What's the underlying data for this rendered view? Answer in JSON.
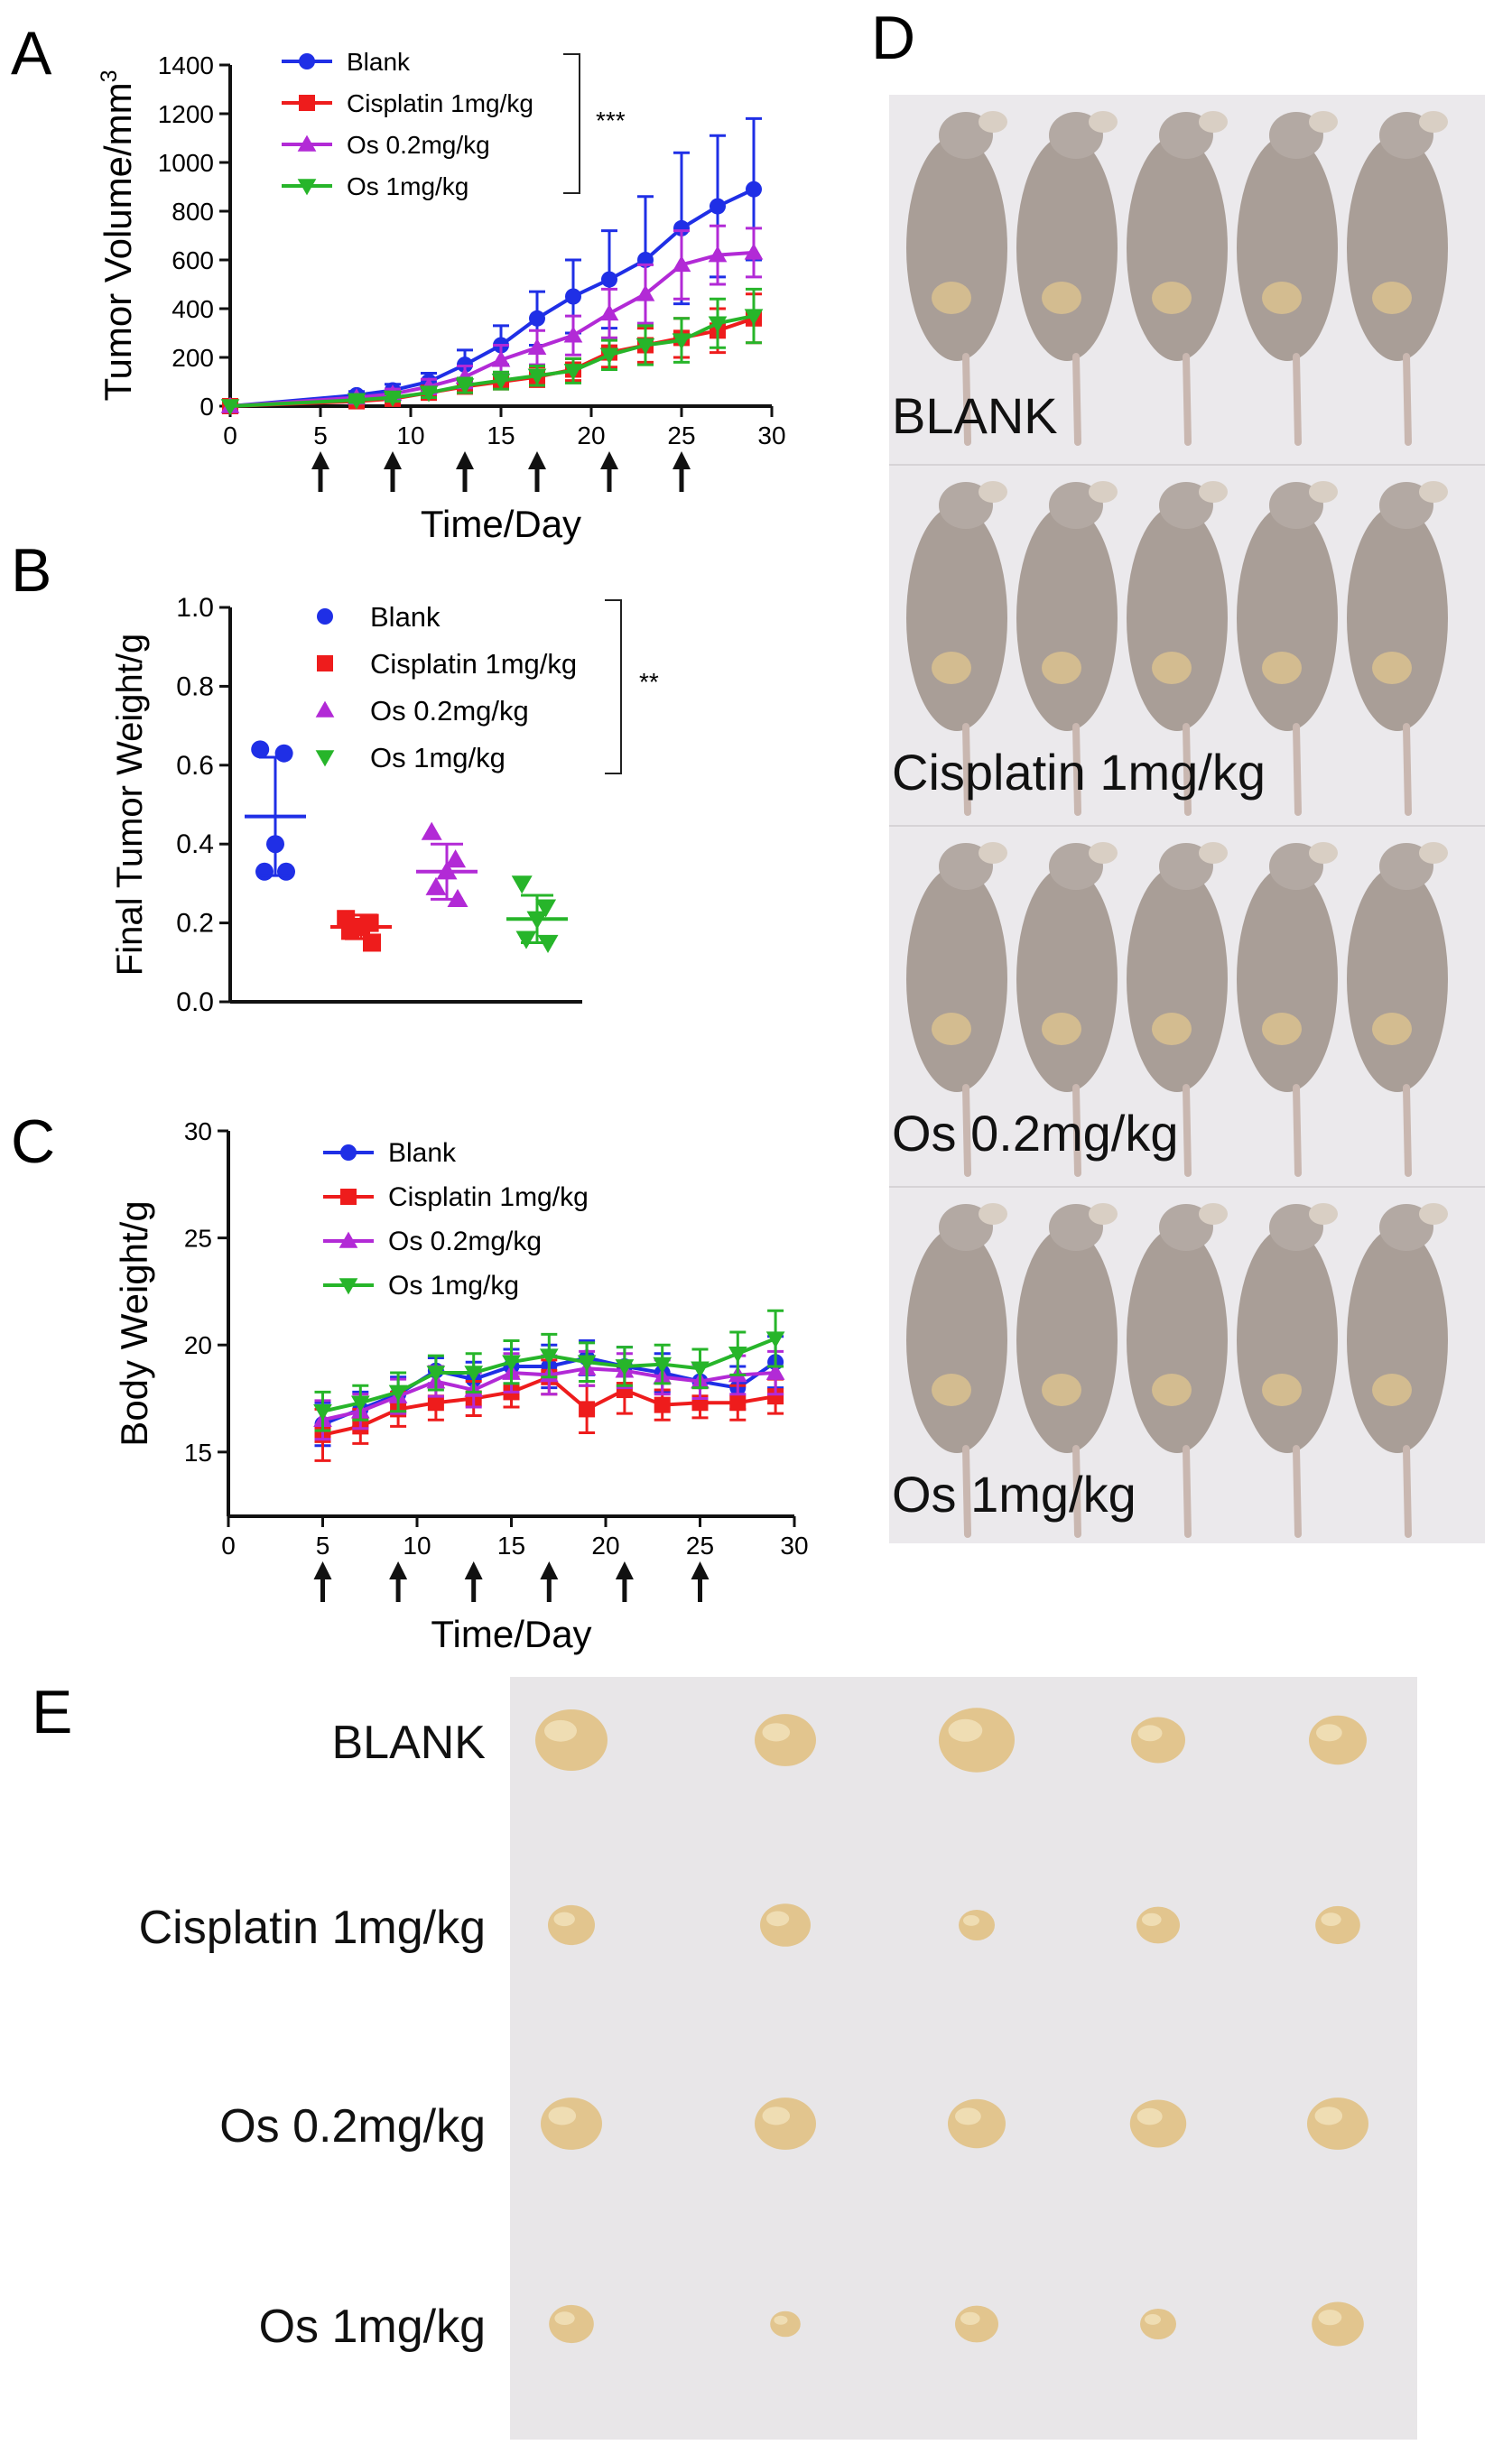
{
  "panels": {
    "a": "A",
    "b": "B",
    "c": "C",
    "d": "D",
    "e": "E"
  },
  "colors": {
    "blank": "#1f2fe6",
    "cisplatin": "#ee1c1c",
    "os02": "#b22ad6",
    "os1": "#27b52a",
    "photo_bg_d": "#ebe9ec",
    "photo_bg_e": "#e8e6e8",
    "mouse": "#a99e97",
    "tumor": "#e2c58e"
  },
  "groups": [
    "Blank",
    "Cisplatin 1mg/kg",
    "Os 0.2mg/kg",
    "Os 1mg/kg"
  ],
  "chart_data": [
    {
      "id": "A",
      "type": "line",
      "xlabel": "Time/Day",
      "ylabel": "Tumor Volume/mm",
      "ylabel_sup": "3",
      "xlim": [
        0,
        30
      ],
      "ylim": [
        0,
        1400
      ],
      "xticks": [
        0,
        5,
        10,
        15,
        20,
        25,
        30
      ],
      "yticks": [
        0,
        200,
        400,
        600,
        800,
        1000,
        1200,
        1400
      ],
      "dosing_days": [
        5,
        9,
        13,
        17,
        21,
        25
      ],
      "significance": "***",
      "x": [
        0,
        7,
        9,
        11,
        13,
        15,
        17,
        19,
        21,
        23,
        25,
        27,
        29
      ],
      "series": [
        {
          "name": "Blank",
          "values": [
            0,
            45,
            65,
            100,
            170,
            250,
            360,
            450,
            520,
            600,
            730,
            820,
            890
          ],
          "errors": [
            0,
            15,
            25,
            35,
            60,
            80,
            110,
            150,
            200,
            260,
            310,
            290,
            290
          ]
        },
        {
          "name": "Cisplatin 1mg/kg",
          "values": [
            0,
            20,
            30,
            55,
            80,
            100,
            120,
            150,
            220,
            250,
            280,
            310,
            360
          ],
          "errors": [
            0,
            10,
            12,
            20,
            25,
            30,
            40,
            45,
            60,
            70,
            80,
            90,
            100
          ]
        },
        {
          "name": "Os 0.2mg/kg",
          "values": [
            0,
            35,
            50,
            80,
            120,
            190,
            240,
            290,
            380,
            460,
            580,
            620,
            630
          ],
          "errors": [
            0,
            12,
            20,
            30,
            45,
            60,
            70,
            80,
            100,
            120,
            140,
            120,
            100
          ]
        },
        {
          "name": "Os 1mg/kg",
          "values": [
            0,
            25,
            35,
            55,
            85,
            105,
            125,
            145,
            210,
            250,
            270,
            340,
            370
          ],
          "errors": [
            0,
            10,
            15,
            20,
            30,
            35,
            40,
            50,
            60,
            80,
            90,
            100,
            110
          ]
        }
      ]
    },
    {
      "id": "B",
      "type": "scatter",
      "ylabel": "Final Tumor Weight/g",
      "ylim": [
        0,
        1.0
      ],
      "yticks": [
        0.0,
        0.2,
        0.4,
        0.6,
        0.8,
        1.0
      ],
      "significance": "**",
      "series": [
        {
          "name": "Blank",
          "points": [
            0.64,
            0.63,
            0.4,
            0.33,
            0.33
          ],
          "mean": 0.47,
          "sd": 0.15
        },
        {
          "name": "Cisplatin 1mg/kg",
          "points": [
            0.21,
            0.2,
            0.19,
            0.18,
            0.15
          ],
          "mean": 0.19,
          "sd": 0.03
        },
        {
          "name": "Os 0.2mg/kg",
          "points": [
            0.43,
            0.36,
            0.33,
            0.29,
            0.26
          ],
          "mean": 0.33,
          "sd": 0.07
        },
        {
          "name": "Os 1mg/kg",
          "points": [
            0.3,
            0.24,
            0.21,
            0.16,
            0.15
          ],
          "mean": 0.21,
          "sd": 0.06
        }
      ]
    },
    {
      "id": "C",
      "type": "line",
      "xlabel": "Time/Day",
      "ylabel": "Body Weight/g",
      "xlim": [
        0,
        30
      ],
      "ylim": [
        12,
        30
      ],
      "xticks": [
        0,
        5,
        10,
        15,
        20,
        25,
        30
      ],
      "yticks": [
        15,
        20,
        25,
        30
      ],
      "dosing_days": [
        5,
        9,
        13,
        17,
        21,
        25
      ],
      "x": [
        5,
        7,
        9,
        11,
        13,
        15,
        17,
        19,
        21,
        23,
        25,
        27,
        29
      ],
      "series": [
        {
          "name": "Blank",
          "values": [
            16.3,
            17.0,
            17.7,
            18.8,
            18.4,
            19.0,
            19.0,
            19.4,
            19.0,
            18.7,
            18.3,
            18.0,
            19.2
          ],
          "errors": [
            1.0,
            0.8,
            0.8,
            0.6,
            0.8,
            0.8,
            1.0,
            0.8,
            0.9,
            0.9,
            0.8,
            1.0,
            1.2
          ]
        },
        {
          "name": "Cisplatin 1mg/kg",
          "values": [
            15.8,
            16.2,
            17.0,
            17.3,
            17.5,
            17.8,
            18.5,
            17.0,
            17.9,
            17.2,
            17.3,
            17.3,
            17.6
          ],
          "errors": [
            1.2,
            0.8,
            0.8,
            0.8,
            0.8,
            0.7,
            0.8,
            1.1,
            1.1,
            0.7,
            0.7,
            0.8,
            0.8
          ]
        },
        {
          "name": "Os 0.2mg/kg",
          "values": [
            16.5,
            16.9,
            17.6,
            18.3,
            17.9,
            18.7,
            18.6,
            18.9,
            18.8,
            18.5,
            18.3,
            18.6,
            18.7
          ],
          "errors": [
            0.9,
            0.8,
            0.8,
            0.7,
            0.8,
            0.9,
            0.9,
            0.8,
            0.8,
            0.8,
            0.8,
            0.9,
            1.0
          ]
        },
        {
          "name": "Os 1mg/kg",
          "values": [
            16.9,
            17.3,
            17.8,
            18.7,
            18.7,
            19.2,
            19.5,
            19.2,
            19.0,
            19.1,
            18.9,
            19.6,
            20.3
          ],
          "errors": [
            0.9,
            0.8,
            0.9,
            0.8,
            0.9,
            1.0,
            1.0,
            0.9,
            0.9,
            0.9,
            0.9,
            1.0,
            1.3
          ]
        }
      ]
    }
  ],
  "photo_d": {
    "labels": [
      "BLANK",
      "Cisplatin 1mg/kg",
      "Os 0.2mg/kg",
      "Os 1mg/kg"
    ],
    "mice_per_group": 5
  },
  "photo_e": {
    "labels": [
      "BLANK",
      "Cisplatin 1mg/kg",
      "Os 0.2mg/kg",
      "Os 1mg/kg"
    ],
    "tumor_sizes": [
      [
        1.0,
        0.85,
        1.05,
        0.75,
        0.8
      ],
      [
        0.65,
        0.7,
        0.5,
        0.6,
        0.62
      ],
      [
        0.85,
        0.85,
        0.8,
        0.78,
        0.85
      ],
      [
        0.62,
        0.42,
        0.6,
        0.5,
        0.72
      ]
    ]
  }
}
